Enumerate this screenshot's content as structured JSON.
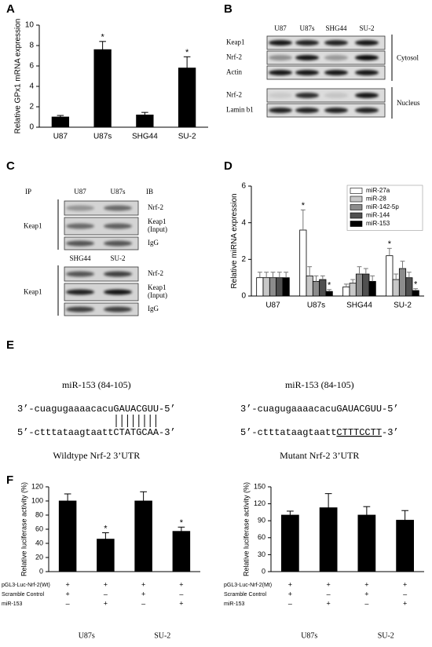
{
  "panel_labels": [
    "A",
    "B",
    "C",
    "D",
    "E",
    "F"
  ],
  "chart_data": [
    {
      "type": "bar",
      "ylabel": "Relative GPx1 mRNA expression",
      "categories": [
        "U87",
        "U87s",
        "SHG44",
        "SU-2"
      ],
      "values": [
        1.0,
        7.6,
        1.2,
        5.8
      ],
      "errors": [
        0.15,
        0.8,
        0.25,
        1.1
      ],
      "significant": [
        false,
        true,
        false,
        true
      ],
      "significance_mark": "*",
      "color": "#000000",
      "ylim": [
        0,
        10
      ],
      "yticks": [
        0,
        2,
        4,
        6,
        8,
        10
      ]
    },
    {
      "type": "bar",
      "ylabel": "Relative miRNA expression",
      "categories": [
        "U87",
        "U87s",
        "SHG44",
        "SU-2"
      ],
      "series": [
        {
          "name": "miR-27a",
          "color": "#ffffff",
          "values": [
            1.0,
            3.6,
            0.5,
            2.2
          ],
          "errors": [
            0.3,
            1.1,
            0.15,
            0.4
          ],
          "significant": [
            false,
            true,
            false,
            true
          ]
        },
        {
          "name": "miR-28",
          "color": "#c8c8c8",
          "values": [
            1.0,
            1.1,
            0.7,
            0.9
          ],
          "errors": [
            0.3,
            0.5,
            0.2,
            0.3
          ],
          "significant": [
            false,
            false,
            false,
            false
          ]
        },
        {
          "name": "miR-142-5p",
          "color": "#8c8c8c",
          "values": [
            1.0,
            0.8,
            1.2,
            1.5
          ],
          "errors": [
            0.3,
            0.3,
            0.4,
            0.4
          ],
          "significant": [
            false,
            false,
            false,
            false
          ]
        },
        {
          "name": "miR-144",
          "color": "#505050",
          "values": [
            1.0,
            0.9,
            1.2,
            1.0
          ],
          "errors": [
            0.3,
            0.2,
            0.3,
            0.3
          ],
          "significant": [
            false,
            false,
            false,
            false
          ]
        },
        {
          "name": "miR-153",
          "color": "#000000",
          "values": [
            1.0,
            0.25,
            0.8,
            0.3
          ],
          "errors": [
            0.3,
            0.1,
            0.3,
            0.1
          ],
          "significant": [
            false,
            true,
            false,
            true
          ]
        }
      ],
      "significance_mark": "*",
      "legend": "top-right",
      "ylim": [
        0,
        6
      ],
      "yticks": [
        0,
        2,
        4,
        6
      ]
    },
    {
      "type": "bar",
      "ylabel": "Relative luciferase activity (%)",
      "values": [
        100,
        46,
        100,
        57
      ],
      "errors": [
        10,
        9,
        13,
        6
      ],
      "significant": [
        false,
        true,
        false,
        true
      ],
      "significance_mark": "*",
      "color": "#000000",
      "ylim": [
        0,
        120
      ],
      "yticks": [
        0,
        20,
        40,
        60,
        80,
        100,
        120
      ],
      "conditions": [
        {
          "name": "pGL3-Luc-Nrf-2(Wt)",
          "signs": [
            "+",
            "+",
            "+",
            "+"
          ]
        },
        {
          "name": "Scramble Control",
          "signs": [
            "+",
            "–",
            "+",
            "–"
          ]
        },
        {
          "name": "miR-153",
          "signs": [
            "–",
            "+",
            "–",
            "+"
          ]
        }
      ],
      "groups": [
        "U87s",
        "SU-2"
      ]
    },
    {
      "type": "bar",
      "ylabel": "Relative luciferase activity (%)",
      "values": [
        100,
        113,
        100,
        91
      ],
      "errors": [
        7,
        25,
        15,
        17
      ],
      "color": "#000000",
      "ylim": [
        0,
        150
      ],
      "yticks": [
        0,
        30,
        60,
        90,
        120,
        150
      ],
      "conditions": [
        {
          "name": "pGL3-Luc-Nrf-2(Mt)",
          "signs": [
            "+",
            "+",
            "+",
            "+"
          ]
        },
        {
          "name": "Scramble Control",
          "signs": [
            "+",
            "–",
            "+",
            "–"
          ]
        },
        {
          "name": "miR-153",
          "signs": [
            "–",
            "+",
            "–",
            "+"
          ]
        }
      ],
      "groups": [
        "U87s",
        "SU-2"
      ]
    }
  ],
  "blot_b": {
    "columns": [
      "U87",
      "U87s",
      "SHG44",
      "SU-2"
    ],
    "fractions": [
      {
        "name": "Cytosol",
        "rows": [
          "Keap1",
          "Nrf-2",
          "Actin"
        ]
      },
      {
        "name": "Nucleus",
        "rows": [
          "Nrf-2",
          "Lamin b1"
        ]
      }
    ]
  },
  "blot_c": {
    "ip_label": "IP",
    "ib_label": "IB",
    "blocks": [
      {
        "columns": [
          "U87",
          "U87s"
        ],
        "ip": "Keap1",
        "rows": [
          [
            "Nrf-2"
          ],
          [
            "Keap1",
            "(Input)"
          ],
          [
            "IgG"
          ]
        ]
      },
      {
        "columns": [
          "SHG44",
          "SU-2"
        ],
        "ip": "Keap1",
        "rows": [
          [
            "Nrf-2"
          ],
          [
            "Keap1",
            "(Input)"
          ],
          [
            "IgG"
          ]
        ]
      }
    ]
  },
  "sequences": [
    {
      "title": "miR-153 (84-105)",
      "mirna": {
        "prefix": "3’-cuagugaaaacacu",
        "seed": "GAUACGUU",
        "suffix": "-5’"
      },
      "target": {
        "prefix": "5’-ctttataagtaatt",
        "site": "CTATGCAA",
        "suffix": "-3’"
      },
      "paired": true,
      "site_underlined": false,
      "caption": "Wildtype Nrf-2 3’UTR"
    },
    {
      "title": "miR-153 (84-105)",
      "mirna": {
        "prefix": "3’-cuagugaaaacacu",
        "seed": "GAUACGUU",
        "suffix": "-5’"
      },
      "target": {
        "prefix": "5’-ctttataagtaatt",
        "site": "CTTTCCTT",
        "suffix": "-3’"
      },
      "paired": false,
      "site_underlined": true,
      "caption": "Mutant Nrf-2 3’UTR"
    }
  ]
}
